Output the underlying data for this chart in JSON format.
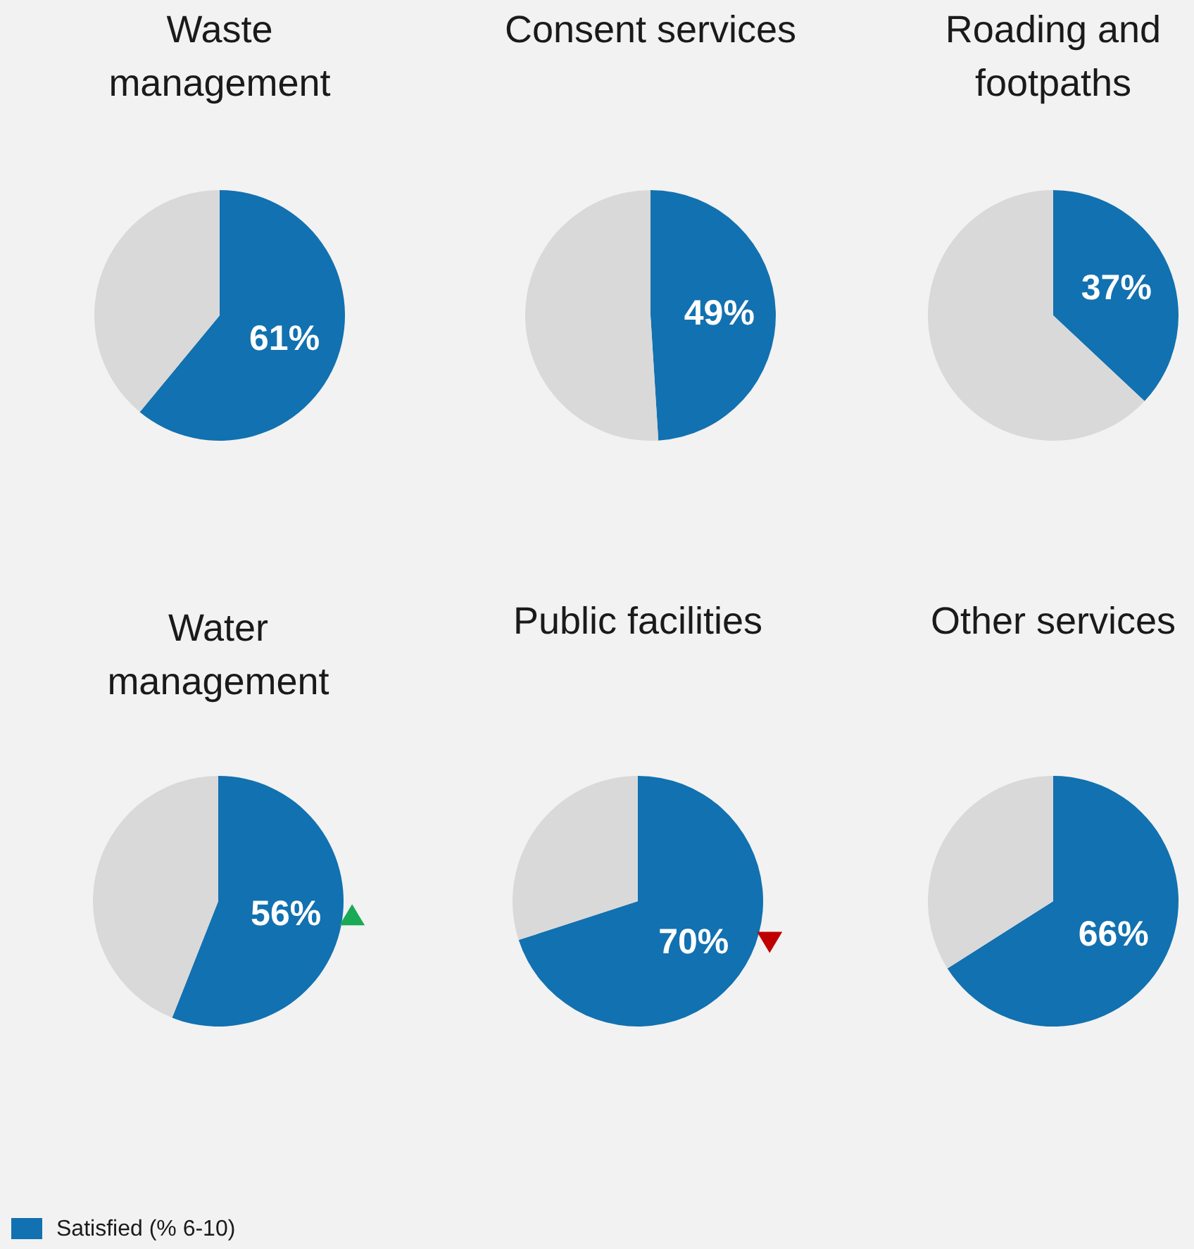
{
  "chart_data": [
    {
      "type": "pie",
      "title": "Waste\nmanagement",
      "categories": [
        "Satisfied (% 6-10)",
        null
      ],
      "values": [
        61,
        39
      ],
      "colors": [
        "#1271b0",
        "#d9d9d9"
      ],
      "value_labels": [
        "61%",
        null
      ],
      "legend": "bottom left"
    },
    {
      "type": "pie",
      "title": "Consent services",
      "categories": [
        null,
        null
      ],
      "values": [
        49,
        51
      ],
      "colors": [
        "#1271b0",
        "#d9d9d9"
      ],
      "value_labels": [
        "49%",
        null
      ]
    },
    {
      "type": "pie",
      "title": "Roading and\nfootpaths",
      "categories": [
        null,
        null
      ],
      "values": [
        37,
        63
      ],
      "colors": [
        "#1271b0",
        "#d9d9d9"
      ],
      "value_labels": [
        "37%",
        null
      ]
    },
    {
      "type": "pie",
      "title": "Water\nmanagement",
      "categories": [
        null,
        null
      ],
      "values": [
        56,
        44
      ],
      "colors": [
        "#1271b0",
        "#d9d9d9"
      ],
      "value_labels": [
        "56%",
        null
      ]
    },
    {
      "type": "pie",
      "title": "Public facilities",
      "categories": [
        null,
        null
      ],
      "values": [
        70,
        30
      ],
      "colors": [
        "#1271b0",
        "#d9d9d9"
      ],
      "value_labels": [
        "70%",
        null
      ]
    },
    {
      "type": "pie",
      "title": "Other services",
      "categories": [
        null,
        null
      ],
      "values": [
        66,
        34
      ],
      "colors": [
        "#1271b0",
        "#d9d9d9"
      ],
      "value_labels": [
        "66%",
        null
      ]
    }
  ]
}
